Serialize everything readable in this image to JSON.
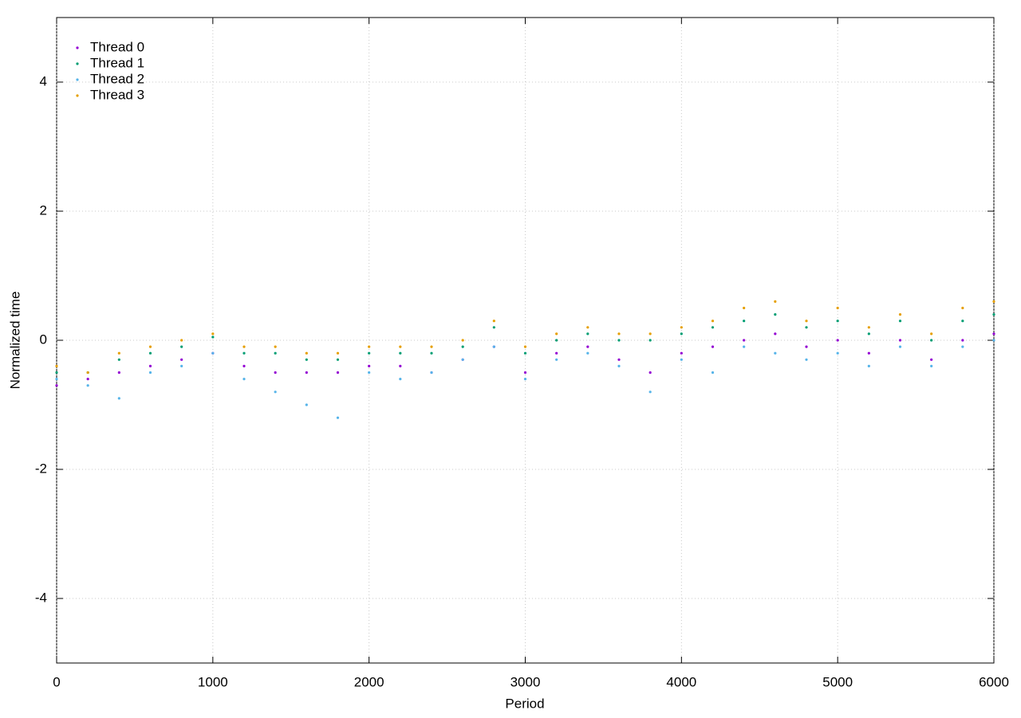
{
  "chart_data": {
    "type": "scatter",
    "xlabel": "Period",
    "ylabel": "Normalized time",
    "x": [
      0,
      200,
      400,
      600,
      800,
      1000,
      1200,
      1400,
      1600,
      1800,
      2000,
      2200,
      2400,
      2600,
      2800,
      3000,
      3200,
      3400,
      3600,
      3800,
      4000,
      4200,
      4400,
      4600,
      4800,
      5000,
      5200,
      5400,
      5600,
      5800,
      6000
    ],
    "series": [
      {
        "name": "Thread 0",
        "color": "#9400d3",
        "values": [
          -0.7,
          -0.6,
          -0.5,
          -0.4,
          -0.3,
          -0.2,
          -0.4,
          -0.5,
          -0.5,
          -0.5,
          -0.4,
          -0.4,
          -0.5,
          -0.3,
          -0.1,
          -0.5,
          -0.2,
          -0.1,
          -0.3,
          -0.5,
          -0.2,
          -0.1,
          0.0,
          0.1,
          -0.1,
          0.0,
          -0.2,
          0.0,
          -0.3,
          0.0,
          0.1
        ]
      },
      {
        "name": "Thread 1",
        "color": "#009e73",
        "values": [
          -0.5,
          -0.5,
          -0.3,
          -0.2,
          -0.1,
          0.05,
          -0.2,
          -0.2,
          -0.3,
          -0.3,
          -0.2,
          -0.2,
          -0.2,
          -0.1,
          0.2,
          -0.2,
          0.0,
          0.1,
          0.0,
          0.0,
          0.1,
          0.2,
          0.3,
          0.4,
          0.2,
          0.3,
          0.1,
          0.3,
          0.0,
          0.3,
          0.4
        ]
      },
      {
        "name": "Thread 2",
        "color": "#56b4e9",
        "values": [
          -0.6,
          -0.7,
          -0.9,
          -0.5,
          -0.4,
          -0.2,
          -0.6,
          -0.8,
          -1.0,
          -1.2,
          -0.5,
          -0.6,
          -0.5,
          -0.3,
          -0.1,
          -0.6,
          -0.3,
          -0.2,
          -0.4,
          -0.8,
          -0.3,
          -0.5,
          -0.1,
          -0.2,
          -0.3,
          -0.2,
          -0.4,
          -0.1,
          -0.4,
          -0.1,
          0.0
        ]
      },
      {
        "name": "Thread 3",
        "color": "#e69f00",
        "values": [
          -0.4,
          -0.5,
          -0.2,
          -0.1,
          0.0,
          0.1,
          -0.1,
          -0.1,
          -0.2,
          -0.2,
          -0.1,
          -0.1,
          -0.1,
          0.0,
          0.3,
          -0.1,
          0.1,
          0.2,
          0.1,
          0.1,
          0.2,
          0.3,
          0.5,
          0.6,
          0.3,
          0.5,
          0.2,
          0.4,
          0.1,
          0.5,
          0.6
        ]
      }
    ],
    "xlim": [
      0,
      6000
    ],
    "xticks": [
      0,
      1000,
      2000,
      3000,
      4000,
      5000,
      6000
    ],
    "ylim": [
      -5,
      5
    ],
    "yticks": [
      -4,
      -2,
      0,
      2,
      4
    ],
    "grid": true,
    "legend": "top-left"
  }
}
